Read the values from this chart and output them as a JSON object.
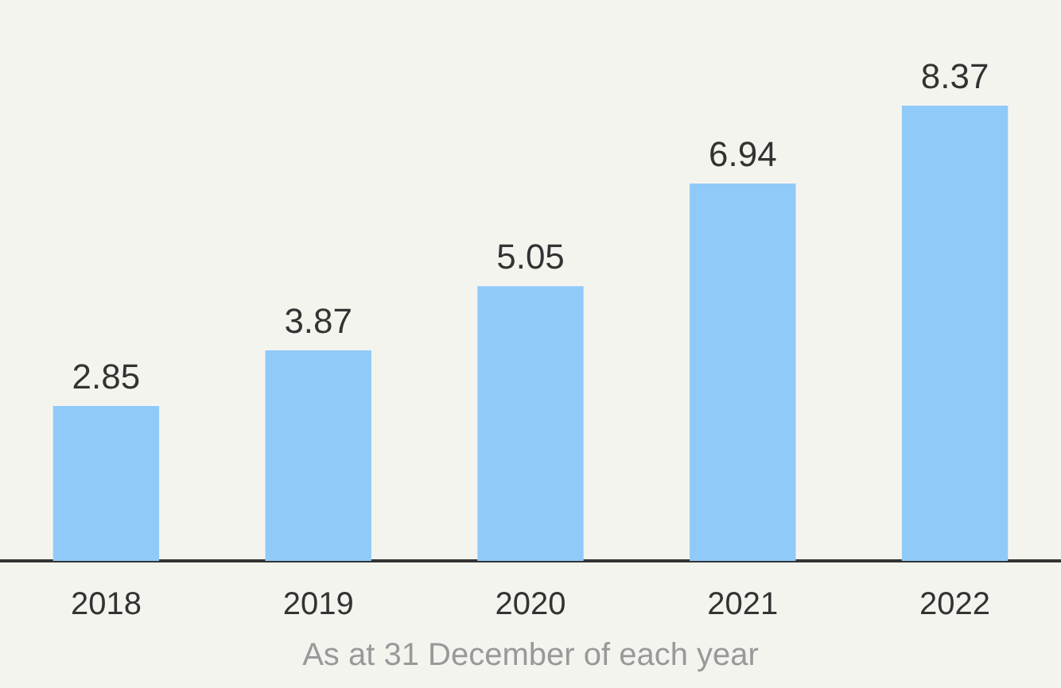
{
  "chart_data": {
    "type": "bar",
    "categories": [
      "2018",
      "2019",
      "2020",
      "2021",
      "2022"
    ],
    "values": [
      2.85,
      3.87,
      5.05,
      6.94,
      8.37
    ],
    "color": "#90caf9",
    "xlabel": "As at 31 December of each year",
    "data_labels": true
  }
}
